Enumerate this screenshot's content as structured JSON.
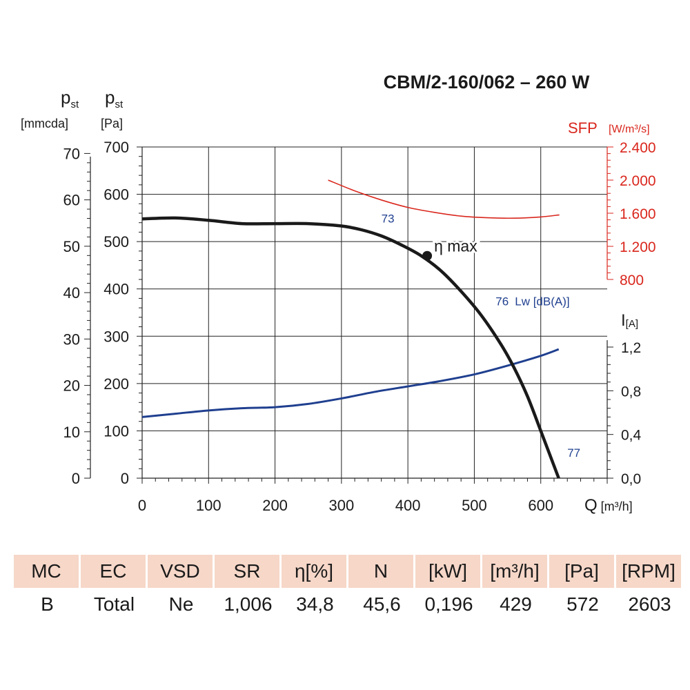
{
  "title": "CBM/2-160/062 – 260 W",
  "left_axis_mm": {
    "label_main": "p",
    "label_sub": "st",
    "unit": "[mmcda]"
  },
  "left_axis_pa": {
    "label_main": "p",
    "label_sub": "st",
    "unit": "[Pa]"
  },
  "sfp_axis": {
    "label": "SFP",
    "unit": "[W/m³/s]"
  },
  "current_axis": {
    "label_main": "I",
    "label_sub": "[A]"
  },
  "x_axis": {
    "label": "Q",
    "unit": "[m³/h]"
  },
  "annotations": {
    "eta_max": "η max",
    "lw_label": "Lw [dB(A)]"
  },
  "colors": {
    "pressure": "#1a1a1a",
    "current": "#1f3f8f",
    "sfp": "#d9261c",
    "table_header": "#f6d7c8",
    "grid": "#222222"
  },
  "chart_data": {
    "type": "line",
    "title": "CBM/2-160/062 – 260 W",
    "x_ticks": [
      "0",
      "100",
      "200",
      "300",
      "400",
      "500",
      "600"
    ],
    "xlim": [
      0,
      700
    ],
    "y_pa_ticks": [
      "0",
      "100",
      "200",
      "300",
      "400",
      "500",
      "600",
      "700"
    ],
    "ylim_pa": [
      0,
      700
    ],
    "y_mm_ticks": [
      "0",
      "10",
      "20",
      "30",
      "40",
      "50",
      "60",
      "70"
    ],
    "ylim_mm": [
      0,
      71.4
    ],
    "sfp_ticks": [
      "800",
      "1.200",
      "1.600",
      "2.000",
      "2.400"
    ],
    "ylim_sfp": [
      800,
      2400
    ],
    "current_ticks": [
      "0,0",
      "0,4",
      "0,8",
      "1,2"
    ],
    "ylim_current": [
      0,
      1.2
    ],
    "grid": true,
    "series": [
      {
        "name": "pst",
        "x": [
          0,
          50,
          100,
          150,
          200,
          250,
          300,
          330,
          360,
          390,
          420,
          450,
          480,
          510,
          540,
          560,
          580,
          600,
          627
        ],
        "y": [
          548,
          550,
          545,
          538,
          538,
          538,
          533,
          525,
          512,
          493,
          470,
          438,
          395,
          345,
          283,
          233,
          173,
          100,
          0
        ]
      },
      {
        "name": "I",
        "x": [
          0,
          50,
          100,
          150,
          200,
          250,
          300,
          350,
          400,
          450,
          500,
          550,
          600,
          627
        ],
        "y": [
          0.56,
          0.59,
          0.62,
          0.64,
          0.65,
          0.68,
          0.73,
          0.79,
          0.84,
          0.89,
          0.95,
          1.03,
          1.12,
          1.18
        ]
      },
      {
        "name": "SFP",
        "x": [
          280,
          320,
          360,
          400,
          440,
          480,
          520,
          560,
          600,
          628
        ],
        "y": [
          2000,
          1870,
          1760,
          1670,
          1610,
          1565,
          1545,
          1540,
          1555,
          1580
        ]
      }
    ],
    "eta_max_point": {
      "x": 429,
      "y": 470
    },
    "lw_points": [
      {
        "label": "73",
        "x": 360,
        "y": 540
      },
      {
        "label": "76",
        "x": 532,
        "y": 365
      },
      {
        "label": "77",
        "x": 640,
        "y": 45
      }
    ]
  },
  "table": {
    "headers": [
      "MC",
      "EC",
      "VSD",
      "SR",
      "η[%]",
      "N",
      "[kW]",
      "[m³/h]",
      "[Pa]",
      "[RPM]"
    ],
    "values": [
      "B",
      "Total",
      "Ne",
      "1,006",
      "34,8",
      "45,6",
      "0,196",
      "429",
      "572",
      "2603"
    ]
  }
}
